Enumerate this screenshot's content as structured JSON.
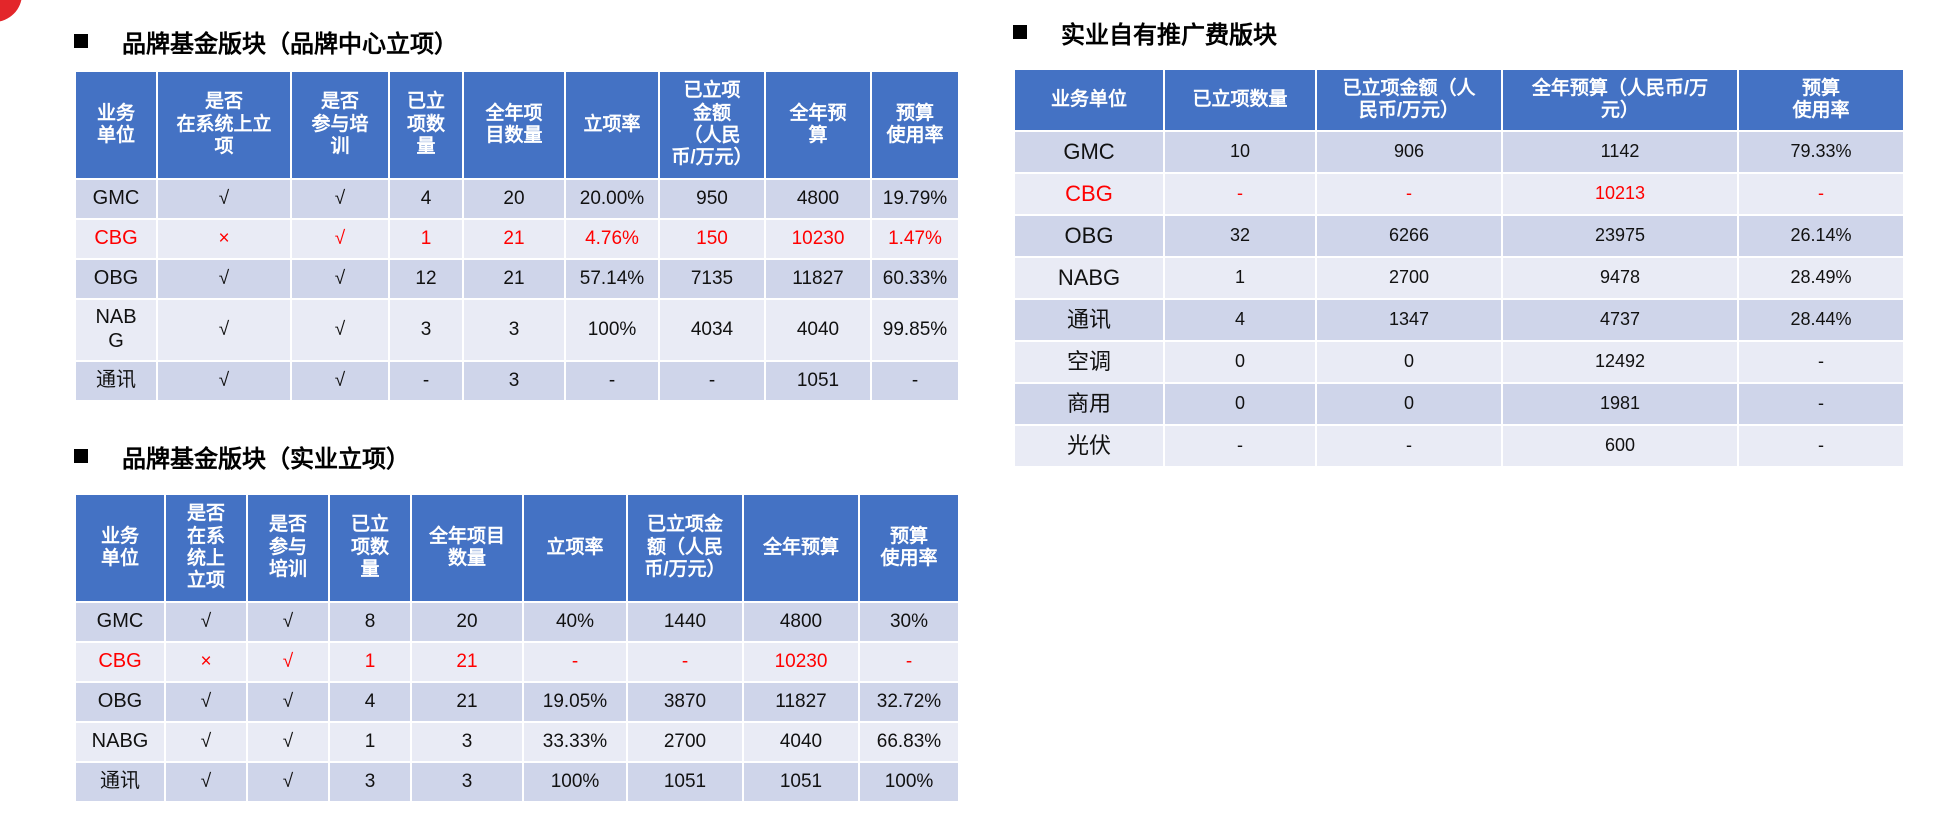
{
  "sections": [
    {
      "title": "品牌基金版块（品牌中心立项）",
      "headers": [
        "业务\n单位",
        "是否\n在系统上立\n项",
        "是否\n参与培\n训",
        "已立\n项数\n量",
        "全年项\n目数量",
        "立项率",
        "已立项\n金额\n（人民\n币/万元）",
        "全年预\n算",
        "预算\n使用率"
      ],
      "rows": [
        [
          "GMC",
          "√",
          "√",
          "4",
          "20",
          "20.00%",
          "950",
          "4800",
          "19.79%"
        ],
        [
          "CBG",
          "×",
          "√",
          "1",
          "21",
          "4.76%",
          "150",
          "10230",
          "1.47%"
        ],
        [
          "OBG",
          "√",
          "√",
          "12",
          "21",
          "57.14%",
          "7135",
          "11827",
          "60.33%"
        ],
        [
          "NAB\nG",
          "√",
          "√",
          "3",
          "3",
          "100%",
          "4034",
          "4040",
          "99.85%"
        ],
        [
          "通讯",
          "√",
          "√",
          "-",
          "3",
          "-",
          "-",
          "1051",
          "-"
        ]
      ]
    },
    {
      "title": "品牌基金版块（实业立项）",
      "headers": [
        "业务\n单位",
        "是否\n在系\n统上\n立项",
        "是否\n参与\n培训",
        "已立\n项数\n量",
        "全年项目\n数量",
        "立项率",
        "已立项金\n额（人民\n币/万元）",
        "全年预算",
        "预算\n使用率"
      ],
      "rows": [
        [
          "GMC",
          "√",
          "√",
          "8",
          "20",
          "40%",
          "1440",
          "4800",
          "30%"
        ],
        [
          "CBG",
          "×",
          "√",
          "1",
          "21",
          "-",
          "-",
          "10230",
          "-"
        ],
        [
          "OBG",
          "√",
          "√",
          "4",
          "21",
          "19.05%",
          "3870",
          "11827",
          "32.72%"
        ],
        [
          "NABG",
          "√",
          "√",
          "1",
          "3",
          "33.33%",
          "2700",
          "4040",
          "66.83%"
        ],
        [
          "通讯",
          "√",
          "√",
          "3",
          "3",
          "100%",
          "1051",
          "1051",
          "100%"
        ]
      ]
    },
    {
      "title": "实业自有推广费版块",
      "headers": [
        "业务单位",
        "已立项数量",
        "已立项金额（人\n民币/万元）",
        "全年预算（人民币/万\n元）",
        "预算\n使用率"
      ],
      "rows": [
        [
          "GMC",
          "10",
          "906",
          "1142",
          "79.33%"
        ],
        [
          "CBG",
          "-",
          "-",
          "10213",
          "-"
        ],
        [
          "OBG",
          "32",
          "6266",
          "23975",
          "26.14%"
        ],
        [
          "NABG",
          "1",
          "2700",
          "9478",
          "28.49%"
        ],
        [
          "通讯",
          "4",
          "1347",
          "4737",
          "28.44%"
        ],
        [
          "空调",
          "0",
          "0",
          "12492",
          "-"
        ],
        [
          "商用",
          "0",
          "0",
          "1981",
          "-"
        ],
        [
          "光伏",
          "-",
          "-",
          "600",
          "-"
        ]
      ]
    }
  ],
  "colors": {
    "header_bg": "#4472c4",
    "row_odd_bg": "#cfd5ea",
    "row_even_bg": "#e9ebf5",
    "highlight_text": "#ff0000",
    "corner_mark": "#e3262a"
  },
  "highlight_unit": "CBG"
}
